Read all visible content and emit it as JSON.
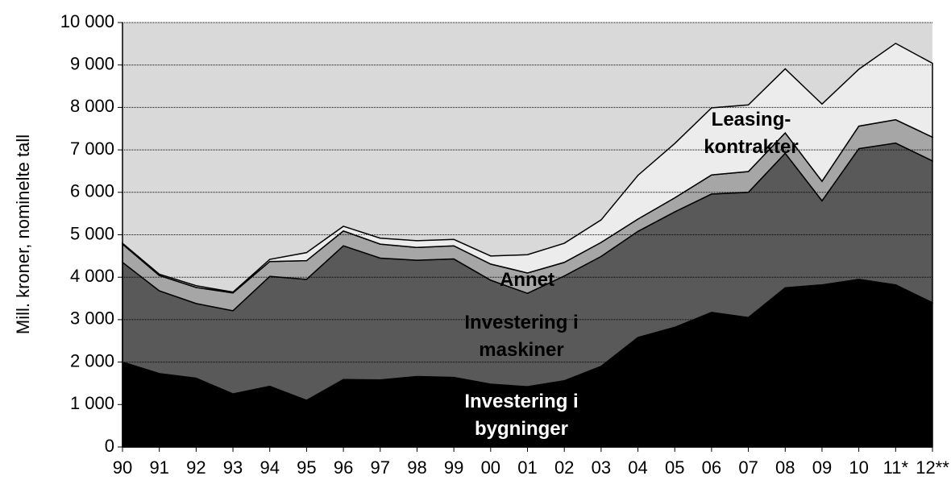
{
  "chart_data": {
    "type": "stacked_area",
    "y_axis_label": "Mill. kroner, nominelte tall",
    "categories": [
      "90",
      "91",
      "92",
      "93",
      "94",
      "95",
      "96",
      "97",
      "98",
      "99",
      "00",
      "01",
      "02",
      "03",
      "04",
      "05",
      "06",
      "07",
      "08",
      "09",
      "10",
      "11*",
      "12**"
    ],
    "series": [
      {
        "name": "Investering i\nbygninger",
        "color": "#000000",
        "values": [
          2000,
          1730,
          1620,
          1250,
          1430,
          1100,
          1590,
          1580,
          1660,
          1640,
          1480,
          1420,
          1560,
          1900,
          2580,
          2820,
          3170,
          3050,
          3750,
          3820,
          3950,
          3820,
          3400
        ]
      },
      {
        "name": "Investering i\nmaskiner",
        "color": "#595959",
        "values": [
          2350,
          1950,
          1760,
          1960,
          2590,
          2850,
          3150,
          2870,
          2740,
          2790,
          2450,
          2200,
          2470,
          2590,
          2500,
          2720,
          2790,
          2950,
          3170,
          1980,
          3080,
          3340,
          3340
        ]
      },
      {
        "name": "Annet",
        "color": "#a6a6a6",
        "values": [
          430,
          360,
          380,
          420,
          350,
          440,
          350,
          330,
          300,
          310,
          380,
          480,
          320,
          330,
          290,
          330,
          450,
          490,
          480,
          460,
          530,
          550,
          560
        ]
      },
      {
        "name": "Leasing-\nkontrakter",
        "color": "#ececec",
        "values": [
          20,
          30,
          40,
          20,
          50,
          190,
          110,
          140,
          160,
          150,
          190,
          430,
          450,
          530,
          1030,
          1280,
          1580,
          1570,
          1510,
          1820,
          1340,
          1800,
          1740
        ]
      }
    ],
    "ylim": [
      0,
      10000
    ],
    "yticks": [
      0,
      {
        "value": 1000,
        "label": "1 000"
      },
      {
        "value": 2000,
        "label": "2 000"
      },
      {
        "value": 3000,
        "label": "3 000"
      },
      {
        "value": 4000,
        "label": "4 000"
      },
      {
        "value": 5000,
        "label": "5 000"
      },
      {
        "value": 6000,
        "label": "6 000"
      },
      {
        "value": 7000,
        "label": "7 000"
      },
      {
        "value": 8000,
        "label": "8 000"
      },
      {
        "value": 9000,
        "label": "9 000"
      },
      {
        "value": 10000,
        "label": "10 000"
      }
    ],
    "grid": true
  }
}
